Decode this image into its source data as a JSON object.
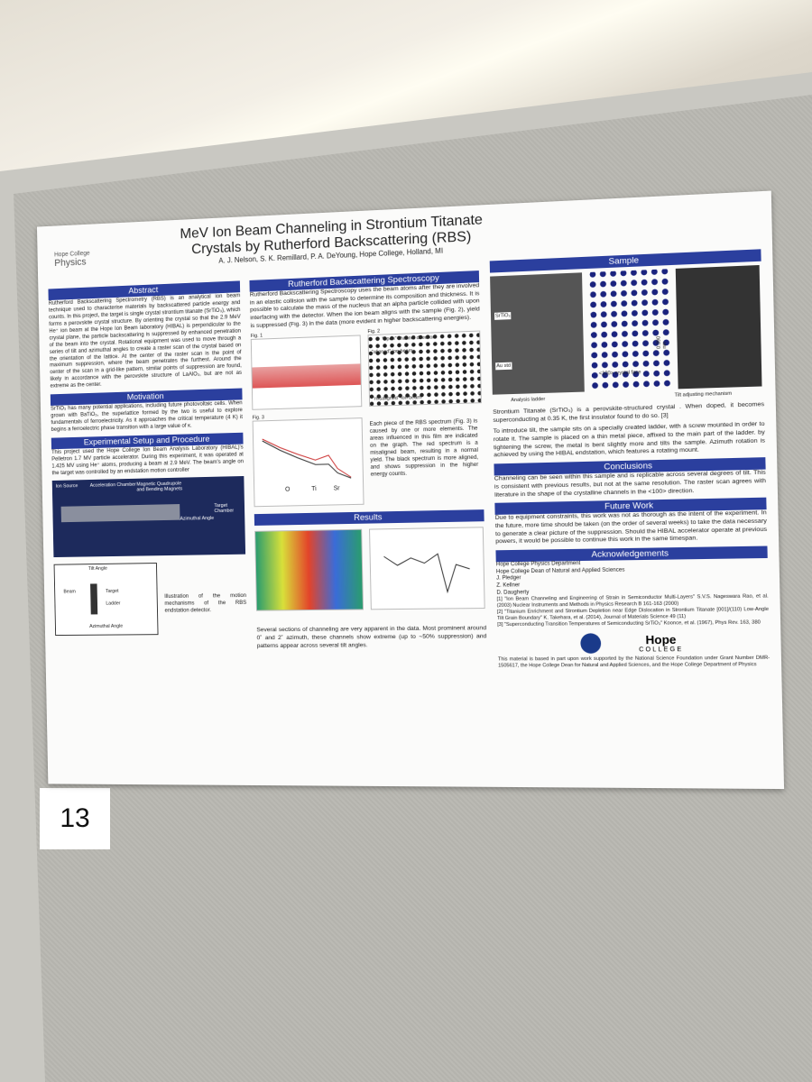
{
  "header": {
    "title_line1": "MeV Ion Beam Channeling in Strontium Titanate",
    "title_line2": "Crystals by Rutherford Backscattering (RBS)",
    "authors": "A. J. Nelson, S. K. Remillard, P. A. DeYoung, Hope College, Holland, MI",
    "logo_line1": "Hope College",
    "logo_line2": "Physics"
  },
  "abstract": {
    "heading": "Abstract",
    "text": "Rutherford Backscattering Spectrometry (RBS) is an analytical ion beam technique used to characterise materials by backscattered particle energy and counts. In this project, the target is single crystal strontium titanate (SrTiO₃), which forms a perovskite crystal structure. By orienting the crystal so that the 2.9 MeV He⁺ ion beam at the Hope Ion Beam laboratory (HIBAL) is perpendicular to the crystal plane, the particle backscattering is suppressed by enhanced penetration of the beam into the crystal. Rotational equipment was used to move through a series of tilt and azimuthal angles to create a raster scan of the crystal based on the orientation of the lattice. At the center of the raster scan is the point of maximum suppression, where the beam penetrates the furthest. Around the center of the scan in a grid-like pattern, similar points of suppression are found, likely in accordance with the perovskite structure of LaAlO₃, but are not as extreme as the center."
  },
  "motivation": {
    "heading": "Motivation",
    "text": "SrTiO₃ has many potential applications, including future photovoltaic cells. When grown with BaTiO₃, the superlattice formed by the two is useful to explore fundamentals of ferroelectricity. As it approaches the critical temperature (4 K) it begins a ferroelectric phase transition with a large value of κ."
  },
  "experimental": {
    "heading": "Experimental Setup and Procedure",
    "text": "This project used the Hope College Ion Beam Analysis Laboratory (HIBAL)'s Pelletron 1.7 MV particle accelerator. During this experiment, it was operated at 1.425 MV using He⁺ atoms, producing a beam at 2.9 MeV. The beam's angle on the target was controlled by an endstation motion controller",
    "labels": [
      "Ion Source",
      "Acceleration Chamber",
      "Magnetic Quadrupole and Bending Magnets",
      "Azimuthal Angle",
      "Target Chamber"
    ],
    "motion_labels": [
      "Tilt Angle",
      "Beam",
      "Target",
      "Ladder",
      "Azimuthal Angle"
    ],
    "caption": "Illustration of the motion mechanisms of the RBS endstation detector."
  },
  "rbs": {
    "heading": "Rutherford Backscattering Spectroscopy",
    "text": "Rutherford Backscattering Spectroscopy uses the beam atoms after they are involved in an elastic collision with the sample to determine its composition and thickness. It is possible to calculate the mass of the nucleus that an alpha particle collided with upon interfacing with the detector. When the ion beam aligns with the sample (Fig. 2), yield is suppressed (Fig. 3) in the data (more evident in higher backscattering energies).",
    "fig1": "Fig. 1",
    "fig2": "Fig. 2",
    "fig3": "Fig. 3",
    "fig2_labels": [
      "\"open\" channel direction",
      "\"aligned\" ion beam",
      "\"misaligned\" ion beam"
    ],
    "fig3_labels": [
      "O",
      "Ti",
      "Sr"
    ],
    "fig3_text": "Each piece of the RBS spectrum (Fig. 3) is caused by one or more elements. The areas influenced in this film are indicated on the graph. The red spectrum is a misaligned beam, resulting in a normal yield. The black spectrum is more aligned, and shows suppression in the higher energy counts."
  },
  "results": {
    "heading": "Results",
    "text": "Several sections of channeling are very apparent in the data. Most prominent around 0˚ and 2˚ azimuth, these channels show extreme (up to ~50% suppression) and patterns appear across several tilt angles."
  },
  "sample": {
    "heading": "Sample",
    "labels": [
      "SrTiO₃",
      "Au std",
      "Analysis ladder",
      "<100> crystal face",
      "0.390 nm",
      "Tilt adjusting mechanism"
    ],
    "text1": "Strontium Titanate (SrTiO₃) is a perovskite-structured crystal . When doped, it becomes superconducting at 0.35 K, the first insulator found to do so. [3]",
    "text2": "To introduce tilt, the sample sits on a specially created ladder, with a screw mounted in order to rotate it. The sample is placed on a thin metal piece, affixed to the main part of the ladder. by tightening the screw, the metal is bent slightly more and tilts the sample. Azimuth rotation is achieved by using the HIBAL endstation, which features a rotating mount."
  },
  "conclusions": {
    "heading": "Conclusions",
    "text": "Channeling can be seen within this sample and is replicable across several degrees of tilt. This is consistent with previous results, but not at the same resolution. The raster scan agrees with literature in the shape of the crystalline channels in the <100> direction."
  },
  "future_work": {
    "heading": "Future Work",
    "text": "Due to equipment constraints, this work was not as thorough as the intent of the experiment. In the future, more time should be taken (on the order of several weeks) to take the data necessary to generate a clear picture of the suppression. Should the HIBAL accelerator operate at previous powers, it would be possible to continue this work in the same timespan."
  },
  "acknowledgements": {
    "heading": "Acknowledgements",
    "names": [
      "Hope College Physics Department",
      "Hope College Dean of Natural and Applied Sciences",
      "J. Pledger",
      "Z. Kellner",
      "D. Daugherty"
    ],
    "references": [
      "[1] \"Ion Beam Channeling and Engineering of Strain in Semiconductor Multi-Layers\" S.V.S. Nageswara Rao, et al. (2003) Nuclear Instruments and Methods in Physics Research B 161-163 (2000)",
      "[2] \"Titanium Enrichment and Strontium Depletion near Edge Dislocation in Strontium Titanate [001]/(110) Low-Angle Tilt Grain Boundary\" K. Takehara, et al. (2014), Journal of Materials Science 49 (11)",
      "[3] \"Superconducting Transition Temperatures of Semiconducting SrTiO₃\" Koonce, et al. (1967), Phys Rev. 163, 380"
    ],
    "funding": "This material is based in part upon work supported by the National Science Foundation under Grant Number DMR-1505617, the Hope College Dean for Natural and Applied Sciences, and the Hope College Department of Physics",
    "logo_line1": "Hope",
    "logo_line2": "COLLEGE"
  },
  "poster_number": "13"
}
